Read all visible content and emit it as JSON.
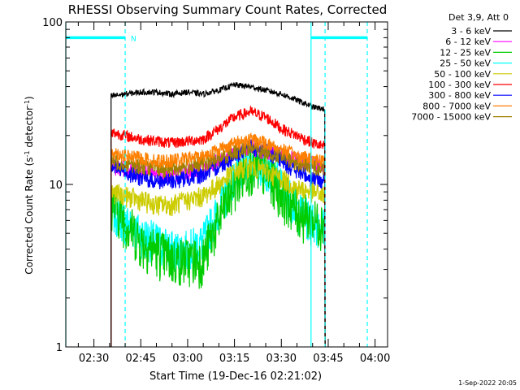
{
  "chart_data": {
    "type": "line",
    "title": "RHESSI Observing Summary Count Rates, Corrected",
    "xlabel": "Start Time (19-Dec-16 02:21:02)",
    "ylabel": "Corrected Count Rate (s",
    "ylabel_sup": "-1",
    "ylabel_tail": " detector",
    "ylabel_end": ")",
    "x_tick_labels": [
      "02:30",
      "02:45",
      "03:00",
      "03:15",
      "03:30",
      "03:45",
      "04:00"
    ],
    "x_ticks_min": [
      30,
      45,
      60,
      75,
      90,
      105,
      120
    ],
    "xlim_min": [
      21,
      124
    ],
    "y_scale": "log",
    "ylim": [
      1,
      100
    ],
    "y_tick_labels": [
      "1",
      "10",
      "100"
    ],
    "legend_title": "Det 3,9, Att 0",
    "legend_placement": "right",
    "timestamp": "1-Sep-2022 20:05",
    "flag_label": "N",
    "flags": {
      "color": "#00ffff",
      "solid_lines_min": [
        21,
        99.5
      ],
      "dashed_lines_min": [
        40,
        104,
        117.5
      ],
      "bars_min": [
        [
          21,
          40
        ],
        [
          99.5,
          117.5
        ]
      ],
      "bar_level": 80
    },
    "data_window_min": [
      35.5,
      104
    ],
    "series": [
      {
        "name": "3 - 6 keV",
        "color": "#000000",
        "x": [
          35.5,
          40,
          45,
          50,
          55,
          60,
          65,
          70,
          75,
          80,
          85,
          90,
          95,
          100,
          104
        ],
        "y": [
          35,
          36,
          37,
          37,
          36,
          37,
          36,
          38,
          41,
          40,
          38,
          36,
          33,
          30,
          29
        ]
      },
      {
        "name": "6 - 12 keV",
        "color": "#ff00ff",
        "x": [
          35.5,
          40,
          45,
          50,
          55,
          60,
          65,
          70,
          75,
          80,
          85,
          90,
          95,
          100,
          104
        ],
        "y": [
          13,
          12.5,
          12,
          11.5,
          11.5,
          12,
          12.5,
          14,
          16,
          17,
          16,
          15,
          14,
          13.5,
          13
        ]
      },
      {
        "name": "12 - 25 keV",
        "color": "#00cc00",
        "x": [
          35.5,
          40,
          45,
          50,
          55,
          60,
          65,
          70,
          75,
          80,
          85,
          90,
          95,
          100,
          104
        ],
        "y": [
          8,
          6,
          4.5,
          4,
          3.5,
          3.5,
          3.5,
          6,
          10,
          13,
          12,
          9,
          7,
          6,
          6
        ]
      },
      {
        "name": "25 - 50 keV",
        "color": "#00ffff",
        "x": [
          35.5,
          40,
          45,
          50,
          55,
          60,
          65,
          70,
          75,
          80,
          85,
          90,
          95,
          100,
          104
        ],
        "y": [
          7,
          6,
          5,
          4.5,
          4,
          4,
          4.5,
          7,
          11,
          14,
          13,
          10,
          7,
          6,
          5.5
        ]
      },
      {
        "name": "50 - 100 keV",
        "color": "#cccc00",
        "x": [
          35.5,
          40,
          45,
          50,
          55,
          60,
          65,
          70,
          75,
          80,
          85,
          90,
          95,
          100,
          104
        ],
        "y": [
          9,
          8.5,
          8,
          7.5,
          7.5,
          8,
          8.5,
          10,
          12,
          13,
          12,
          11,
          9.5,
          9,
          8.5
        ]
      },
      {
        "name": "100 - 300 keV",
        "color": "#ff0000",
        "x": [
          35.5,
          40,
          45,
          50,
          55,
          60,
          65,
          70,
          75,
          80,
          85,
          90,
          95,
          100,
          104
        ],
        "y": [
          21,
          20,
          19,
          18.5,
          18,
          18.5,
          19,
          22,
          26,
          28,
          26,
          22,
          20,
          18,
          17
        ]
      },
      {
        "name": "300 - 800 keV",
        "color": "#0000ff",
        "x": [
          35.5,
          40,
          45,
          50,
          55,
          60,
          65,
          70,
          75,
          80,
          85,
          90,
          95,
          100,
          104
        ],
        "y": [
          13,
          12,
          11,
          10.5,
          10.5,
          11,
          11.5,
          13,
          15,
          17,
          16,
          14,
          12,
          11,
          10.5
        ]
      },
      {
        "name": "800 - 7000 keV",
        "color": "#ff8000",
        "x": [
          35.5,
          40,
          45,
          50,
          55,
          60,
          65,
          70,
          75,
          80,
          85,
          90,
          95,
          100,
          104
        ],
        "y": [
          16,
          15,
          14.5,
          14,
          14,
          14.5,
          15,
          16.5,
          18,
          19,
          18,
          16.5,
          15,
          14.5,
          14
        ]
      },
      {
        "name": "7000 - 15000 keV",
        "color": "#a08000",
        "x": [
          35.5,
          40,
          45,
          50,
          55,
          60,
          65,
          70,
          75,
          80,
          85,
          90,
          95,
          100,
          104
        ],
        "y": [
          14,
          13.5,
          13,
          12.5,
          12.5,
          13,
          13.5,
          14.5,
          16,
          17,
          16,
          15,
          13.5,
          13,
          12.5
        ]
      }
    ]
  }
}
